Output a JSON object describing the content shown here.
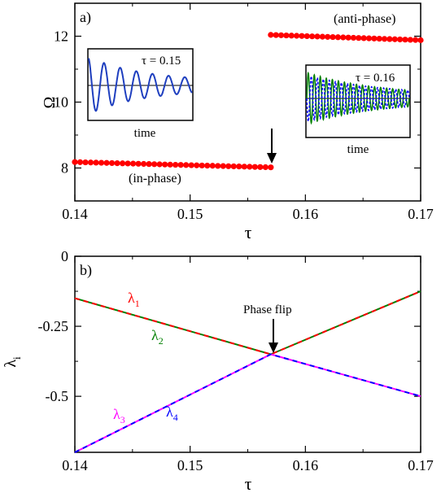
{
  "colors": {
    "red": "#ff0000",
    "green": "#008000",
    "magenta": "#ff00ff",
    "blue": "#0000ff",
    "inset_blue": "#1f3fbf"
  },
  "chart_data": [
    {
      "type": "scatter",
      "panel_label": "a)",
      "xlabel": "τ",
      "ylabel": "Ω",
      "xlim": [
        0.14,
        0.17
      ],
      "ylim": [
        7.0,
        13.0
      ],
      "xticks": [
        "0.14",
        "0.15",
        "0.16",
        "0.17"
      ],
      "yticks": [
        "8",
        "10",
        "12"
      ],
      "series": [
        {
          "name": "(in-phase)",
          "x_start": 0.14,
          "x_end": 0.157,
          "y_start": 8.18,
          "y_end": 8.02,
          "n_points": 38,
          "color": "#ff0000"
        },
        {
          "name": "(anti-phase)",
          "x_start": 0.157,
          "x_end": 0.17,
          "y_start": 12.04,
          "y_end": 11.88,
          "n_points": 30,
          "color": "#ff0000"
        }
      ],
      "arrow_x": 0.157,
      "insets": [
        {
          "name": "τ = 0.15",
          "xlabel": "time",
          "curve": "decaying-single"
        },
        {
          "name": "τ = 0.16",
          "xlabel": "time",
          "curve": "decaying-antiphase"
        }
      ]
    },
    {
      "type": "line",
      "panel_label": "b)",
      "xlabel": "τ",
      "ylabel": "λi",
      "xlim": [
        0.14,
        0.17
      ],
      "ylim": [
        -0.7,
        0.0
      ],
      "xticks": [
        "0.14",
        "0.15",
        "0.16",
        "0.17"
      ],
      "yticks": [
        "0",
        "-0.25",
        "-0.5"
      ],
      "annotation": "Phase flip",
      "arrow_x": 0.157,
      "series": [
        {
          "name": "λ1",
          "x": [
            0.14,
            0.157,
            0.17
          ],
          "y": [
            -0.15,
            -0.35,
            -0.125
          ],
          "color": "#ff0000",
          "dash": "dashed"
        },
        {
          "name": "λ2",
          "x": [
            0.14,
            0.157,
            0.17
          ],
          "y": [
            -0.15,
            -0.35,
            -0.125
          ],
          "color": "#008000",
          "dash": "solid"
        },
        {
          "name": "λ3",
          "x": [
            0.14,
            0.157,
            0.17
          ],
          "y": [
            -0.7,
            -0.35,
            -0.5
          ],
          "color": "#ff00ff",
          "dash": "solid"
        },
        {
          "name": "λ4",
          "x": [
            0.14,
            0.157,
            0.17
          ],
          "y": [
            -0.7,
            -0.35,
            -0.5
          ],
          "color": "#0000ff",
          "dash": "dashed"
        }
      ]
    }
  ]
}
